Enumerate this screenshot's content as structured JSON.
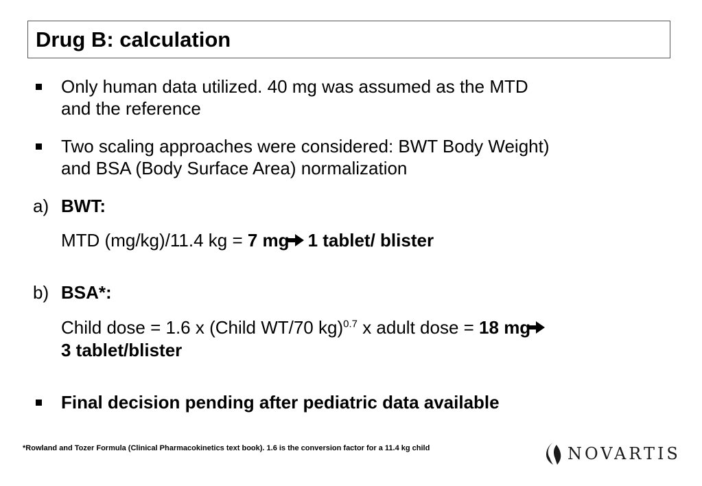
{
  "title": "Drug B: calculation",
  "bullet1": {
    "line1": "Only human data utilized. 40 mg was assumed as the MTD",
    "line2": "and the reference"
  },
  "bullet2": {
    "line1": "Two scaling approaches were considered: BWT Body Weight)",
    "line2": "and BSA (Body Surface Area) normalization"
  },
  "section_a": {
    "marker": "a)",
    "heading": "BWT:",
    "formula": "MTD (mg/kg)/11.4 kg = ",
    "dose": "7 mg",
    "result": "1 tablet/ blister"
  },
  "section_b": {
    "marker": "b)",
    "heading": "BSA*:",
    "formula_start": "Child dose = 1.6 x (Child WT/70 kg)",
    "exponent": "0.7",
    "formula_end": " x adult dose = ",
    "dose": "18 mg",
    "result": "3 tablet/blister"
  },
  "bullet3": "Final decision pending after pediatric data available",
  "footnote": "*Rowland and Tozer Formula (Clinical Pharmacokinetics text book). 1.6 is the conversion factor for a 11.4 kg child",
  "logo": {
    "text": "NOVARTIS",
    "icon": "novartis-flame-icon"
  }
}
